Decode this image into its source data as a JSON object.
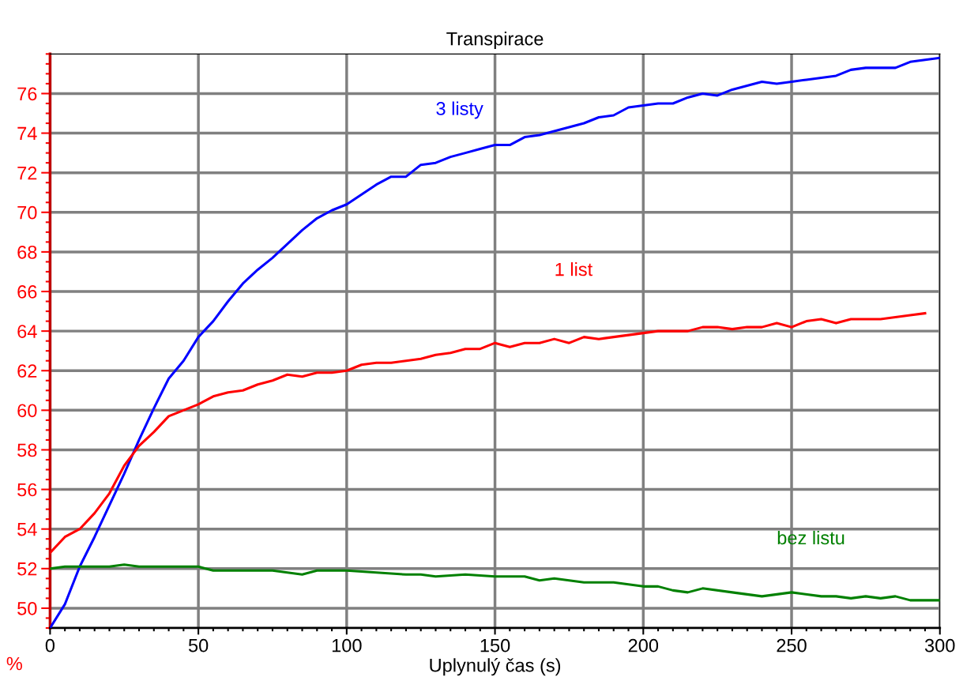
{
  "chart_data": {
    "type": "line",
    "title": "Transpirace",
    "xlabel": "Uplynulý čas (s)",
    "ylabel": "%",
    "xlim": [
      0,
      300
    ],
    "xticks": [
      0,
      50,
      100,
      150,
      200,
      250,
      300
    ],
    "ylim": [
      49,
      78
    ],
    "yticks": [
      50,
      52,
      54,
      56,
      58,
      60,
      62,
      64,
      66,
      68,
      70,
      72,
      74,
      76
    ],
    "grid": true,
    "legend": false,
    "marker": "none",
    "line_style": "solid",
    "series": [
      {
        "name": "3 listy",
        "color": "#0000ff",
        "x": [
          0,
          5,
          10,
          15,
          20,
          25,
          30,
          35,
          40,
          45,
          50,
          55,
          60,
          65,
          70,
          75,
          80,
          85,
          90,
          95,
          100,
          105,
          110,
          115,
          120,
          125,
          130,
          135,
          140,
          145,
          150,
          155,
          160,
          165,
          170,
          175,
          180,
          185,
          190,
          195,
          200,
          205,
          210,
          215,
          220,
          225,
          230,
          235,
          240,
          245,
          250,
          255,
          260,
          265,
          270,
          275,
          280,
          285,
          290,
          295,
          300
        ],
        "values": [
          49.0,
          50.2,
          52.1,
          53.6,
          55.2,
          56.8,
          58.5,
          60.1,
          61.6,
          62.5,
          63.7,
          64.5,
          65.5,
          66.4,
          67.1,
          67.7,
          68.4,
          69.1,
          69.7,
          70.1,
          70.4,
          70.9,
          71.4,
          71.8,
          71.8,
          72.4,
          72.5,
          72.8,
          73.0,
          73.2,
          73.4,
          73.4,
          73.8,
          73.9,
          74.1,
          74.3,
          74.5,
          74.8,
          74.9,
          75.3,
          75.4,
          75.5,
          75.5,
          75.8,
          76.0,
          75.9,
          76.2,
          76.4,
          76.6,
          76.5,
          76.6,
          76.7,
          76.8,
          76.9,
          77.2,
          77.3,
          77.3,
          77.3,
          77.6,
          77.7,
          77.8
        ]
      },
      {
        "name": "1 list",
        "color": "#ff0000",
        "x": [
          0,
          5,
          10,
          15,
          20,
          25,
          30,
          35,
          40,
          45,
          50,
          55,
          60,
          65,
          70,
          75,
          80,
          85,
          90,
          95,
          100,
          105,
          110,
          115,
          120,
          125,
          130,
          135,
          140,
          145,
          150,
          155,
          160,
          165,
          170,
          175,
          180,
          185,
          190,
          195,
          200,
          205,
          210,
          215,
          220,
          225,
          230,
          235,
          240,
          245,
          250,
          255,
          260,
          265,
          270,
          275,
          280,
          285,
          290,
          295
        ],
        "values": [
          52.8,
          53.6,
          54.0,
          54.8,
          55.8,
          57.2,
          58.2,
          58.9,
          59.7,
          60.0,
          60.3,
          60.7,
          60.9,
          61.0,
          61.3,
          61.5,
          61.8,
          61.7,
          61.9,
          61.9,
          62.0,
          62.3,
          62.4,
          62.4,
          62.5,
          62.6,
          62.8,
          62.9,
          63.1,
          63.1,
          63.4,
          63.2,
          63.4,
          63.4,
          63.6,
          63.4,
          63.7,
          63.6,
          63.7,
          63.8,
          63.9,
          64.0,
          64.0,
          64.0,
          64.2,
          64.2,
          64.1,
          64.2,
          64.2,
          64.4,
          64.2,
          64.5,
          64.6,
          64.4,
          64.6,
          64.6,
          64.6,
          64.7,
          64.8,
          64.9
        ]
      },
      {
        "name": "bez listu",
        "color": "#008000",
        "x": [
          0,
          5,
          10,
          15,
          20,
          25,
          30,
          35,
          40,
          45,
          50,
          55,
          60,
          70,
          75,
          80,
          85,
          90,
          95,
          100,
          110,
          120,
          125,
          130,
          140,
          150,
          160,
          165,
          170,
          180,
          190,
          195,
          200,
          205,
          210,
          215,
          220,
          230,
          240,
          245,
          250,
          260,
          265,
          270,
          275,
          280,
          285,
          290,
          295,
          300
        ],
        "values": [
          52.0,
          52.1,
          52.1,
          52.1,
          52.1,
          52.2,
          52.1,
          52.1,
          52.1,
          52.1,
          52.1,
          51.9,
          51.9,
          51.9,
          51.9,
          51.8,
          51.7,
          51.9,
          51.9,
          51.9,
          51.8,
          51.7,
          51.7,
          51.6,
          51.7,
          51.6,
          51.6,
          51.4,
          51.5,
          51.3,
          51.3,
          51.2,
          51.1,
          51.1,
          50.9,
          50.8,
          51.0,
          50.8,
          50.6,
          50.7,
          50.8,
          50.6,
          50.6,
          50.5,
          50.6,
          50.5,
          50.6,
          50.4,
          50.4,
          50.4
        ]
      }
    ]
  }
}
